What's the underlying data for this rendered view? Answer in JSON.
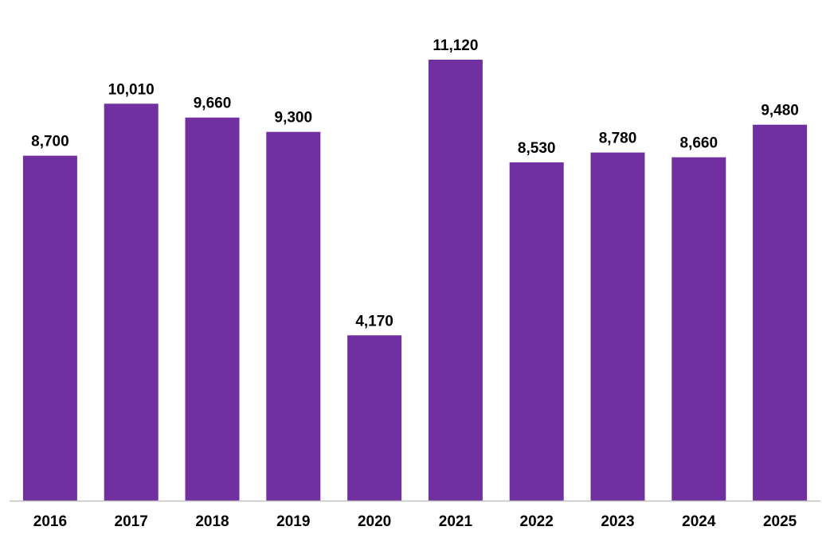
{
  "chart_data": {
    "type": "bar",
    "title": "",
    "xlabel": "",
    "ylabel": "",
    "categories": [
      "2016",
      "2017",
      "2018",
      "2019",
      "2020",
      "2021",
      "2022",
      "2023",
      "2024",
      "2025"
    ],
    "values": [
      8700,
      10010,
      9660,
      9300,
      4170,
      11120,
      8530,
      8780,
      8660,
      9480
    ],
    "value_labels": [
      "8,700",
      "10,010",
      "9,660",
      "9,300",
      "4,170",
      "11,120",
      "8,530",
      "8,780",
      "8,660",
      "9,480"
    ],
    "ylim": [
      0,
      12500
    ],
    "grid": false,
    "legend": "none",
    "bar_color": "#7030A0",
    "axis_color": "#BFBFBF"
  }
}
